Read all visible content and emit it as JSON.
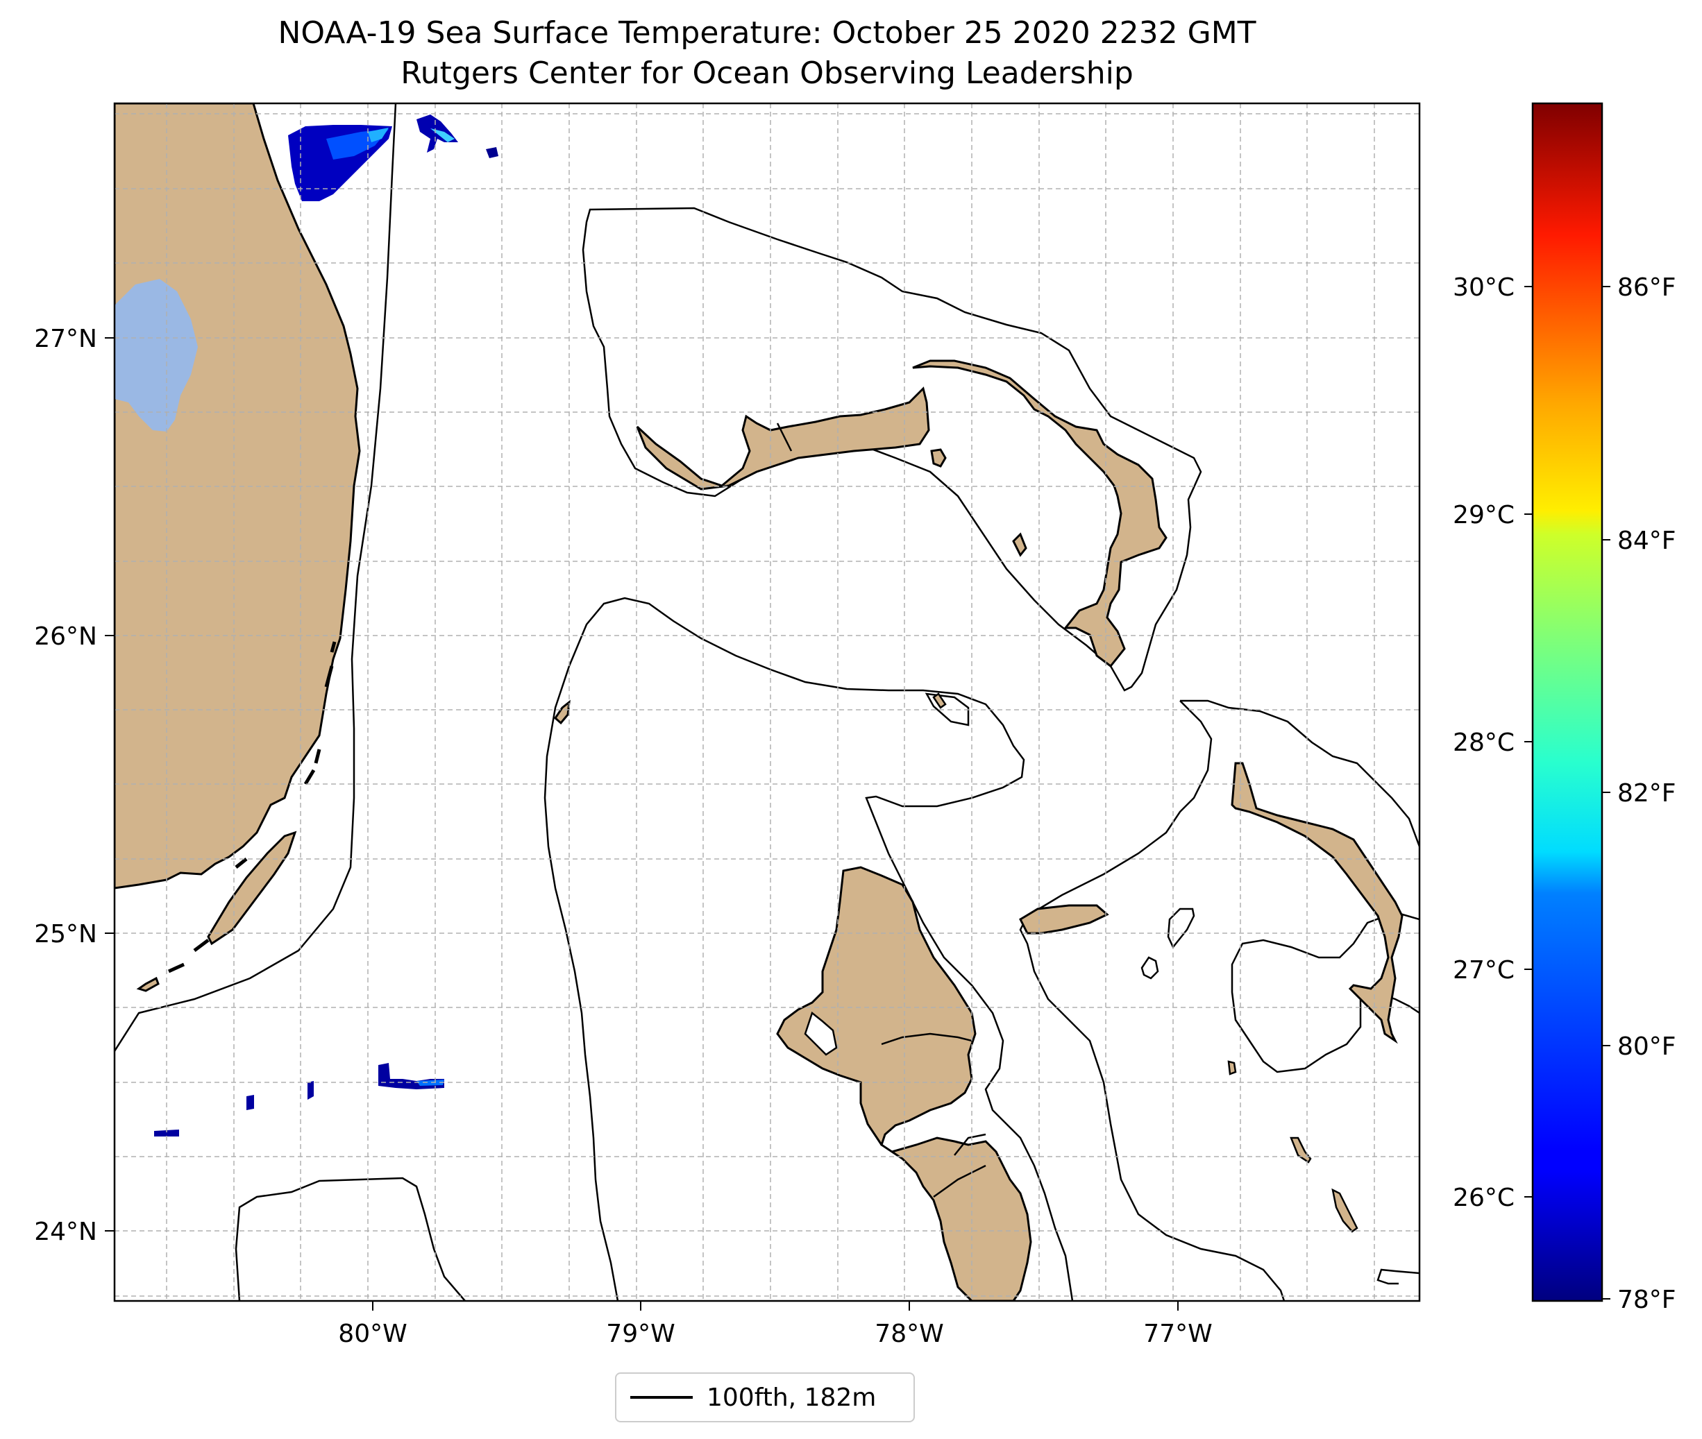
{
  "title": "NOAA-19 Sea Surface Temperature: October 25 2020 2232 GMT",
  "subtitle": "Rutgers Center for Ocean Observing Leadership",
  "map": {
    "lon_range": [
      -80.96,
      -76.1
    ],
    "lat_range": [
      23.74,
      27.8
    ],
    "lon_ticks": [
      "80°W",
      "79°W",
      "78°W",
      "77°W"
    ],
    "lat_ticks": [
      "27°N",
      "26°N",
      "25°N",
      "24°N"
    ],
    "grid": true,
    "land_color": "#d2b48c",
    "lake_color": "#9ab8e4"
  },
  "colorbar": {
    "colormap": "jet",
    "celsius_ticks": [
      "30°C",
      "29°C",
      "28°C",
      "27°C",
      "26°C"
    ],
    "fahrenheit_ticks": [
      "86°F",
      "84°F",
      "82°F",
      "80°F",
      "78°F"
    ]
  },
  "legend": {
    "line_label": "100fth, 182m"
  }
}
